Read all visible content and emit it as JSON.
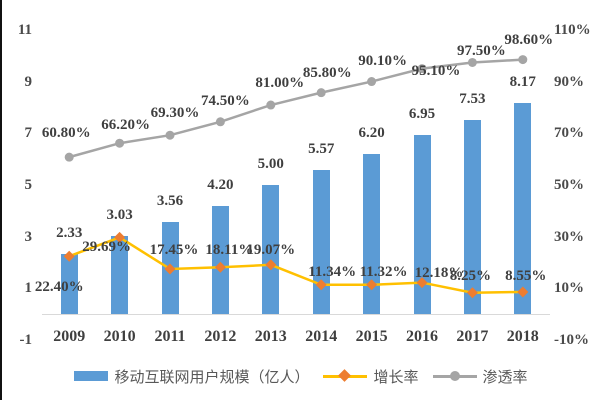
{
  "colors": {
    "bar": "#5b9bd5",
    "growth_line": "#ffc000",
    "growth_marker": "#ed7d31",
    "penetration_line": "#a5a5a5",
    "penetration_marker": "#a5a5a5",
    "axis_line": "#d9d9d9",
    "label_text": "#3f3f3f",
    "tick_text": "#4a4a4a"
  },
  "chart_data": {
    "type": "bar",
    "subtype": "combo-bar-line",
    "categories": [
      "2009",
      "2010",
      "2011",
      "2012",
      "2013",
      "2014",
      "2015",
      "2016",
      "2017",
      "2018"
    ],
    "series": [
      {
        "name": "移动互联网用户规模（亿人）",
        "type": "bar",
        "axis": "left",
        "values": [
          2.33,
          3.03,
          3.56,
          4.2,
          5.0,
          5.57,
          6.2,
          6.95,
          7.53,
          8.17
        ],
        "labels": [
          "2.33",
          "3.03",
          "3.56",
          "4.20",
          "5.00",
          "5.57",
          "6.20",
          "6.95",
          "7.53",
          "8.17"
        ]
      },
      {
        "name": "增长率",
        "type": "line",
        "marker": "diamond",
        "axis": "right",
        "values": [
          22.4,
          29.69,
          17.45,
          18.11,
          19.07,
          11.34,
          11.32,
          12.18,
          8.25,
          8.55
        ],
        "labels": [
          "22.40%",
          "29.69%",
          "17.45%",
          "18.11%",
          "19.07%",
          "11.34%",
          "11.32%",
          "12.18%",
          "8.25%",
          "8.55%"
        ]
      },
      {
        "name": "渗透率",
        "type": "line",
        "marker": "circle",
        "axis": "right",
        "values": [
          60.8,
          66.2,
          69.3,
          74.5,
          81.0,
          85.8,
          90.1,
          95.1,
          97.5,
          98.6
        ],
        "labels": [
          "60.80%",
          "66.20%",
          "69.30%",
          "74.50%",
          "81.00%",
          "85.80%",
          "90.10%",
          "95.10%",
          "97.50%",
          "98.60%"
        ]
      }
    ],
    "left_axis": {
      "min": -1,
      "max": 11,
      "ticks": [
        {
          "label": "11",
          "value": 11
        },
        {
          "label": "9",
          "value": 9
        },
        {
          "label": "7",
          "value": 7
        },
        {
          "label": "5",
          "value": 5
        },
        {
          "label": "3",
          "value": 3
        },
        {
          "label": "1",
          "value": 1
        },
        {
          "label": "-1",
          "value": -1
        }
      ]
    },
    "right_axis": {
      "min": -10,
      "max": 110,
      "ticks": [
        {
          "label": "110%",
          "value": 110
        },
        {
          "label": "90%",
          "value": 90
        },
        {
          "label": "70%",
          "value": 70
        },
        {
          "label": "50%",
          "value": 50
        },
        {
          "label": "30%",
          "value": 30
        },
        {
          "label": "10%",
          "value": 10
        },
        {
          "label": "-10%",
          "value": -10
        }
      ]
    },
    "legend_position": "bottom",
    "grid": false
  }
}
